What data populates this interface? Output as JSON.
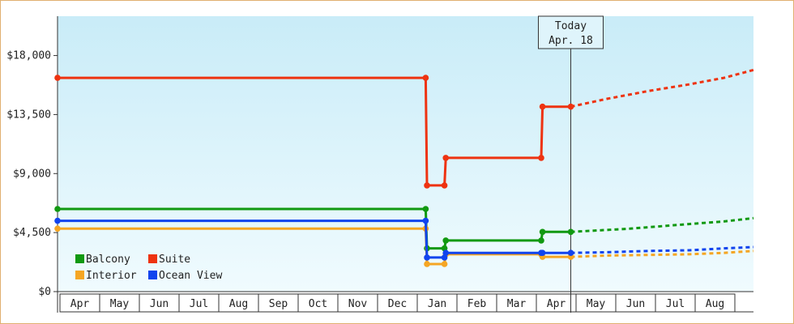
{
  "chart_data": {
    "type": "line",
    "title": "",
    "xlabel": "",
    "ylabel": "",
    "y_tick_labels": [
      "$0",
      "$4,500",
      "$9,000",
      "$13,500",
      "$18,000"
    ],
    "y_tick_values": [
      0,
      4500,
      9000,
      13500,
      18000
    ],
    "ylim": [
      0,
      21000
    ],
    "x_tick_labels": [
      "Apr",
      "May",
      "Jun",
      "Jul",
      "Aug",
      "Sep",
      "Oct",
      "Nov",
      "Dec",
      "Jan",
      "Feb",
      "Mar",
      "Apr",
      "May",
      "Jun",
      "Jul",
      "Aug"
    ],
    "xlim": [
      "2016-04-01",
      "2017-09-01"
    ],
    "today_marker": {
      "line1": "Today",
      "line2": "Apr. 18",
      "date": "2017-04-18"
    },
    "grid": false,
    "legend_position": "bottom-left",
    "series": [
      {
        "name": "Balcony",
        "color": "#119911",
        "points": [
          [
            "2016-04-01",
            6300
          ],
          [
            "2016-12-31",
            6300
          ],
          [
            "2017-01-01",
            3300
          ],
          [
            "2017-01-14",
            3300
          ],
          [
            "2017-01-15",
            3900
          ],
          [
            "2017-03-27",
            3900
          ],
          [
            "2017-03-28",
            4550
          ],
          [
            "2017-04-18",
            4550
          ]
        ],
        "forecast": [
          [
            "2017-04-18",
            4550
          ],
          [
            "2017-06-01",
            4800
          ],
          [
            "2017-07-15",
            5150
          ],
          [
            "2017-08-10",
            5350
          ],
          [
            "2017-09-01",
            5600
          ]
        ]
      },
      {
        "name": "Suite",
        "color": "#ee3311",
        "points": [
          [
            "2016-04-01",
            16300
          ],
          [
            "2016-12-31",
            16300
          ],
          [
            "2017-01-01",
            8100
          ],
          [
            "2017-01-14",
            8100
          ],
          [
            "2017-01-15",
            10200
          ],
          [
            "2017-03-27",
            10200
          ],
          [
            "2017-03-28",
            14100
          ],
          [
            "2017-04-18",
            14100
          ]
        ],
        "forecast": [
          [
            "2017-04-18",
            14100
          ],
          [
            "2017-05-15",
            14700
          ],
          [
            "2017-06-15",
            15300
          ],
          [
            "2017-07-15",
            15800
          ],
          [
            "2017-08-10",
            16300
          ],
          [
            "2017-09-01",
            16900
          ]
        ]
      },
      {
        "name": "Interior",
        "color": "#f5a623",
        "points": [
          [
            "2016-04-01",
            4800
          ],
          [
            "2016-12-31",
            4800
          ],
          [
            "2017-01-01",
            2100
          ],
          [
            "2017-01-14",
            2100
          ],
          [
            "2017-01-15",
            2850
          ],
          [
            "2017-03-27",
            2850
          ],
          [
            "2017-03-28",
            2650
          ],
          [
            "2017-04-18",
            2650
          ]
        ],
        "forecast": [
          [
            "2017-04-18",
            2650
          ],
          [
            "2017-05-15",
            2750
          ],
          [
            "2017-06-15",
            2800
          ],
          [
            "2017-07-15",
            2850
          ],
          [
            "2017-08-10",
            2950
          ],
          [
            "2017-09-01",
            3100
          ]
        ]
      },
      {
        "name": "Ocean View",
        "color": "#1144ee",
        "points": [
          [
            "2016-04-01",
            5400
          ],
          [
            "2016-12-31",
            5400
          ],
          [
            "2017-01-01",
            2600
          ],
          [
            "2017-01-14",
            2600
          ],
          [
            "2017-01-15",
            2950
          ],
          [
            "2017-03-27",
            2950
          ],
          [
            "2017-03-28",
            2950
          ],
          [
            "2017-04-18",
            2950
          ]
        ],
        "forecast": [
          [
            "2017-04-18",
            2950
          ],
          [
            "2017-05-15",
            3000
          ],
          [
            "2017-06-15",
            3100
          ],
          [
            "2017-07-15",
            3150
          ],
          [
            "2017-08-10",
            3300
          ],
          [
            "2017-09-01",
            3400
          ]
        ]
      }
    ],
    "legend": [
      {
        "name": "Balcony",
        "color": "#119911"
      },
      {
        "name": "Suite",
        "color": "#ee3311"
      },
      {
        "name": "Interior",
        "color": "#f5a623"
      },
      {
        "name": "Ocean View",
        "color": "#1144ee"
      }
    ]
  }
}
